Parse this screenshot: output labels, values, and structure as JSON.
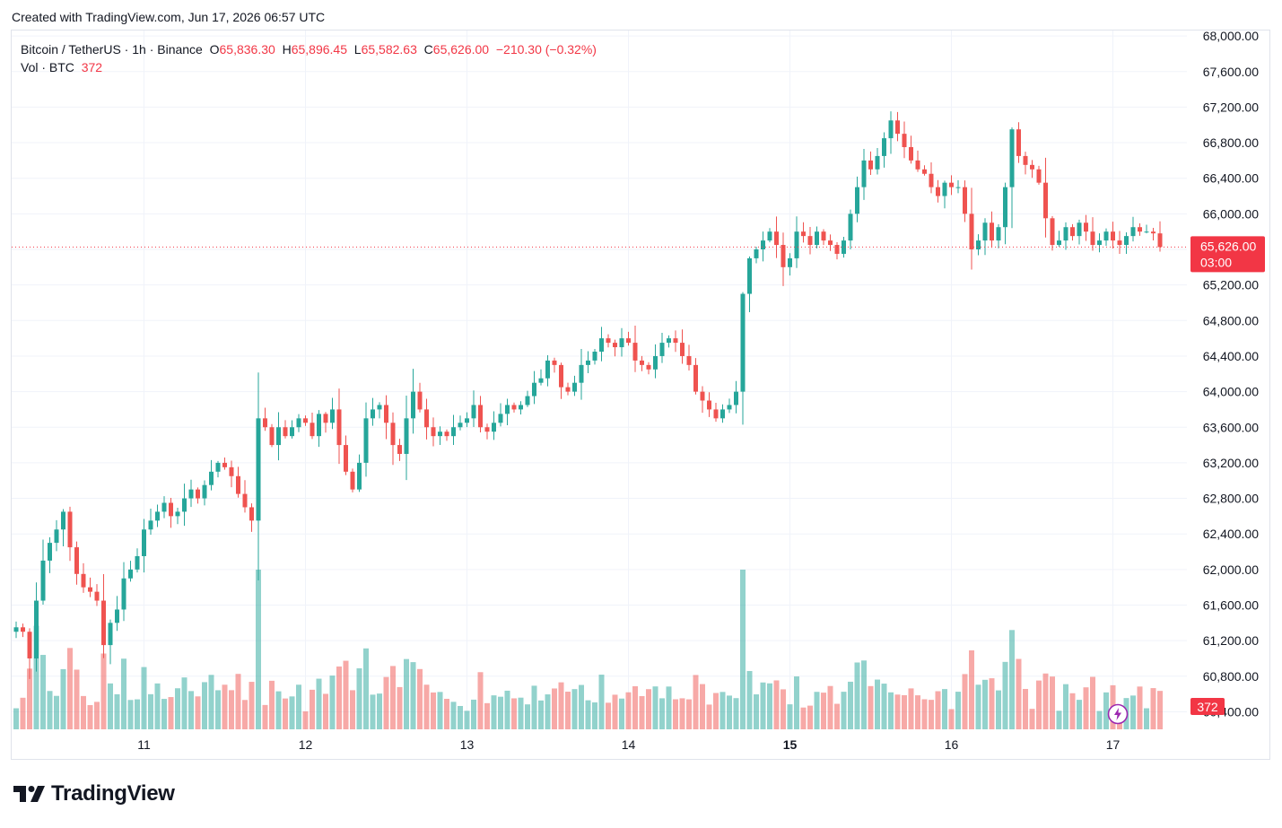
{
  "header": {
    "created_text": "Created with TradingView.com, Jun 17, 2026 06:57 UTC"
  },
  "legend": {
    "symbol": "Bitcoin / TetherUS · 1h · Binance",
    "o_label": "O",
    "o_value": "65,836.30",
    "h_label": "H",
    "h_value": "65,896.45",
    "l_label": "L",
    "l_value": "65,582.63",
    "c_label": "C",
    "c_value": "65,626.00",
    "change": "−210.30 (−0.32%)",
    "vol_label": "Vol · BTC",
    "vol_value": "372"
  },
  "price_badge": {
    "price": "65,626.00",
    "countdown": "03:00"
  },
  "volume_badge": "372",
  "footer": {
    "brand": "TradingView"
  },
  "colors": {
    "up": "#26a69a",
    "down": "#ef5350",
    "up_vol": "#26a69a80",
    "down_vol": "#ef535080",
    "grid": "#f0f3fa",
    "text": "#131722",
    "badge": "#f23645"
  },
  "chart_data": {
    "type": "candlestick",
    "interval": "1h",
    "y_axis": {
      "ticks": [
        60400,
        60800,
        61200,
        61600,
        62000,
        62400,
        62800,
        63200,
        63600,
        64000,
        64400,
        64800,
        65200,
        65600,
        66000,
        66400,
        66800,
        67200,
        67600,
        68000
      ],
      "tick_labels": [
        "60,400.00",
        "60,800.00",
        "61,200.00",
        "61,600.00",
        "62,000.00",
        "62,400.00",
        "62,800.00",
        "63,200.00",
        "63,600.00",
        "64,000.00",
        "64,400.00",
        "64,800.00",
        "65,200.00",
        "65,600.00",
        "66,000.00",
        "66,400.00",
        "66,800.00",
        "67,200.00",
        "67,600.00",
        "68,000.00"
      ],
      "range": [
        60200,
        68150
      ]
    },
    "x_axis": {
      "ticks": [
        "11",
        "12",
        "13",
        "14",
        "15",
        "16",
        "17"
      ],
      "tick_hours": [
        19,
        43,
        67,
        91,
        115,
        139,
        163
      ],
      "bold": [
        "15"
      ],
      "hour_range": [
        0,
        187
      ]
    },
    "last_price": 65626,
    "candle_closes": [
      61350,
      61300,
      61000,
      61650,
      62100,
      62300,
      62450,
      62650,
      62250,
      61950,
      61800,
      61750,
      61650,
      61150,
      61400,
      61550,
      61900,
      62000,
      62150,
      62450,
      62550,
      62650,
      62750,
      62600,
      62650,
      62800,
      62900,
      62800,
      62950,
      63100,
      63200,
      63150,
      63050,
      62850,
      62700,
      62550,
      63700,
      63600,
      63400,
      63600,
      63500,
      63600,
      63700,
      63650,
      63500,
      63750,
      63650,
      63800,
      63400,
      63100,
      62900,
      63200,
      63700,
      63800,
      63850,
      63650,
      63400,
      63300,
      63700,
      64000,
      63800,
      63600,
      63500,
      63550,
      63500,
      63600,
      63650,
      63700,
      63850,
      63600,
      63550,
      63650,
      63750,
      63850,
      63800,
      63850,
      63950,
      64100,
      64150,
      64350,
      64300,
      64050,
      64000,
      64100,
      64300,
      64350,
      64450,
      64600,
      64550,
      64500,
      64600,
      64550,
      64350,
      64300,
      64250,
      64400,
      64550,
      64600,
      64550,
      64400,
      64300,
      64000,
      63900,
      63800,
      63700,
      63800,
      63850,
      64000,
      65100,
      65500,
      65600,
      65700,
      65800,
      65650,
      65400,
      65500,
      65800,
      65750,
      65650,
      65800,
      65700,
      65650,
      65550,
      65700,
      66000,
      66300,
      66600,
      66500,
      66650,
      66850,
      67050,
      66900,
      66750,
      66600,
      66500,
      66450,
      66300,
      66200,
      66350,
      66300,
      66300,
      66000,
      65600,
      65700,
      65900,
      65700,
      65850,
      66300,
      66950,
      66650,
      66550,
      66500,
      66350,
      65950,
      65650,
      65700,
      65850,
      65750,
      65900,
      65800,
      65650,
      65700,
      65800,
      65700,
      65650,
      65750,
      65850,
      65800,
      65800,
      65780,
      65626
    ],
    "volume_max_label": "372"
  }
}
